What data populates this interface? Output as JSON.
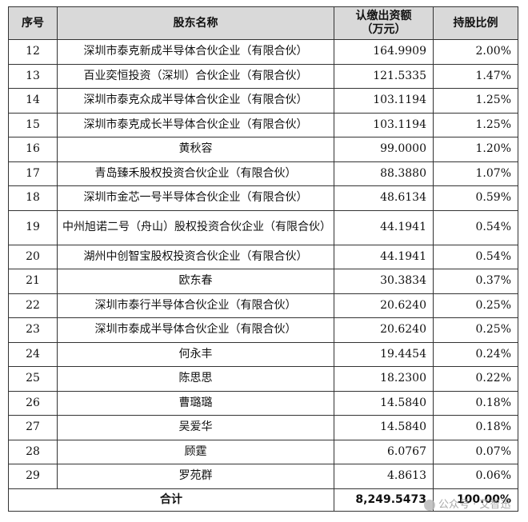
{
  "table": {
    "headers": {
      "index": "序号",
      "name": "股东名称",
      "amount": "认缴出资额\n（万元）",
      "ratio": "持股比例"
    },
    "rows": [
      {
        "index": "12",
        "name": "深圳市泰克新成半导体合伙企业（有限合伙）",
        "amount": "164.9909",
        "ratio": "2.00%"
      },
      {
        "index": "13",
        "name": "百业奕恒投资（深圳）合伙企业（有限合伙）",
        "amount": "121.5335",
        "ratio": "1.47%"
      },
      {
        "index": "14",
        "name": "深圳市泰克众成半导体合伙企业（有限合伙）",
        "amount": "103.1194",
        "ratio": "1.25%"
      },
      {
        "index": "15",
        "name": "深圳市泰克成长半导体合伙企业（有限合伙）",
        "amount": "103.1194",
        "ratio": "1.25%"
      },
      {
        "index": "16",
        "name": "黄秋容",
        "amount": "99.0000",
        "ratio": "1.20%"
      },
      {
        "index": "17",
        "name": "青岛臻禾股权投资合伙企业（有限合伙）",
        "amount": "88.3880",
        "ratio": "1.07%"
      },
      {
        "index": "18",
        "name": "深圳市金芯一号半导体合伙企业（有限合伙）",
        "amount": "48.6134",
        "ratio": "0.59%"
      },
      {
        "index": "19",
        "name": "中州旭诺二号（舟山）股权投资合伙企业（有限合伙）",
        "amount": "44.1941",
        "ratio": "0.54%"
      },
      {
        "index": "20",
        "name": "湖州中创智宝股权投资合伙企业（有限合伙）",
        "amount": "44.1941",
        "ratio": "0.54%"
      },
      {
        "index": "21",
        "name": "欧东春",
        "amount": "30.3834",
        "ratio": "0.37%"
      },
      {
        "index": "22",
        "name": "深圳市泰行半导体合伙企业（有限合伙）",
        "amount": "20.6240",
        "ratio": "0.25%"
      },
      {
        "index": "23",
        "name": "深圳市泰成半导体合伙企业（有限合伙）",
        "amount": "20.6240",
        "ratio": "0.25%"
      },
      {
        "index": "24",
        "name": "何永丰",
        "amount": "19.4454",
        "ratio": "0.24%"
      },
      {
        "index": "25",
        "name": "陈思思",
        "amount": "18.2300",
        "ratio": "0.22%"
      },
      {
        "index": "26",
        "name": "曹璐璐",
        "amount": "14.5840",
        "ratio": "0.18%"
      },
      {
        "index": "27",
        "name": "吴爱华",
        "amount": "14.5840",
        "ratio": "0.18%"
      },
      {
        "index": "28",
        "name": "顾霆",
        "amount": "6.0767",
        "ratio": "0.07%"
      },
      {
        "index": "29",
        "name": "罗苑群",
        "amount": "4.8613",
        "ratio": "0.06%"
      }
    ],
    "total": {
      "label": "合计",
      "amount": "8,249.5473",
      "ratio": "100.00%"
    }
  },
  "watermark": "公众号 · 艾智迅"
}
